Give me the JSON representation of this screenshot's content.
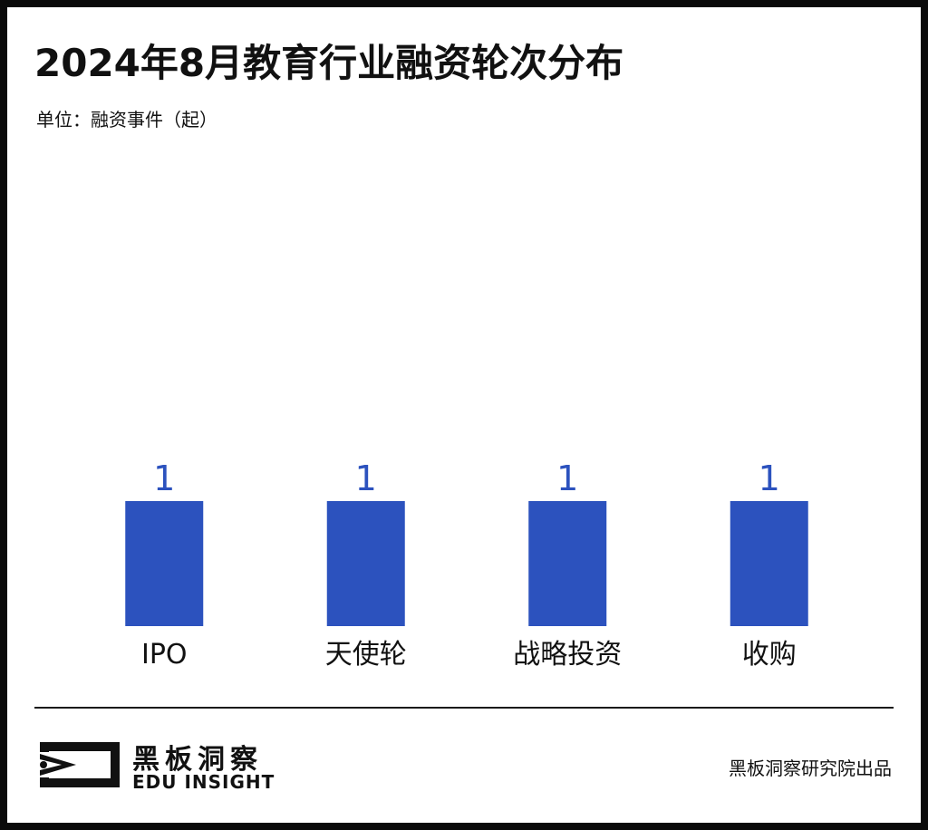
{
  "header": {
    "title": "2024年8月教育行业融资轮次分布",
    "unit_label": "单位：融资事件（起）"
  },
  "chart_data": {
    "type": "bar",
    "categories": [
      "IPO",
      "天使轮",
      "战略投资",
      "收购"
    ],
    "values": [
      1,
      1,
      1,
      1
    ],
    "title": "2024年8月教育行业融资轮次分布",
    "ylabel": "单位：融资事件（起）",
    "xlabel": "",
    "data_labels": true,
    "grid": false,
    "legend": "none",
    "bar_color": "#2c52be",
    "label_color": "#2c52be"
  },
  "footer": {
    "brand_cn": "黑板洞察",
    "brand_en": "EDU INSIGHT",
    "credit": "黑板洞察研究院出品"
  },
  "colors": {
    "frame": "#0a0a0a",
    "bar": "#2c52be",
    "text": "#111111"
  },
  "icons": {
    "logo": "eye-in-frame-logo-icon"
  }
}
